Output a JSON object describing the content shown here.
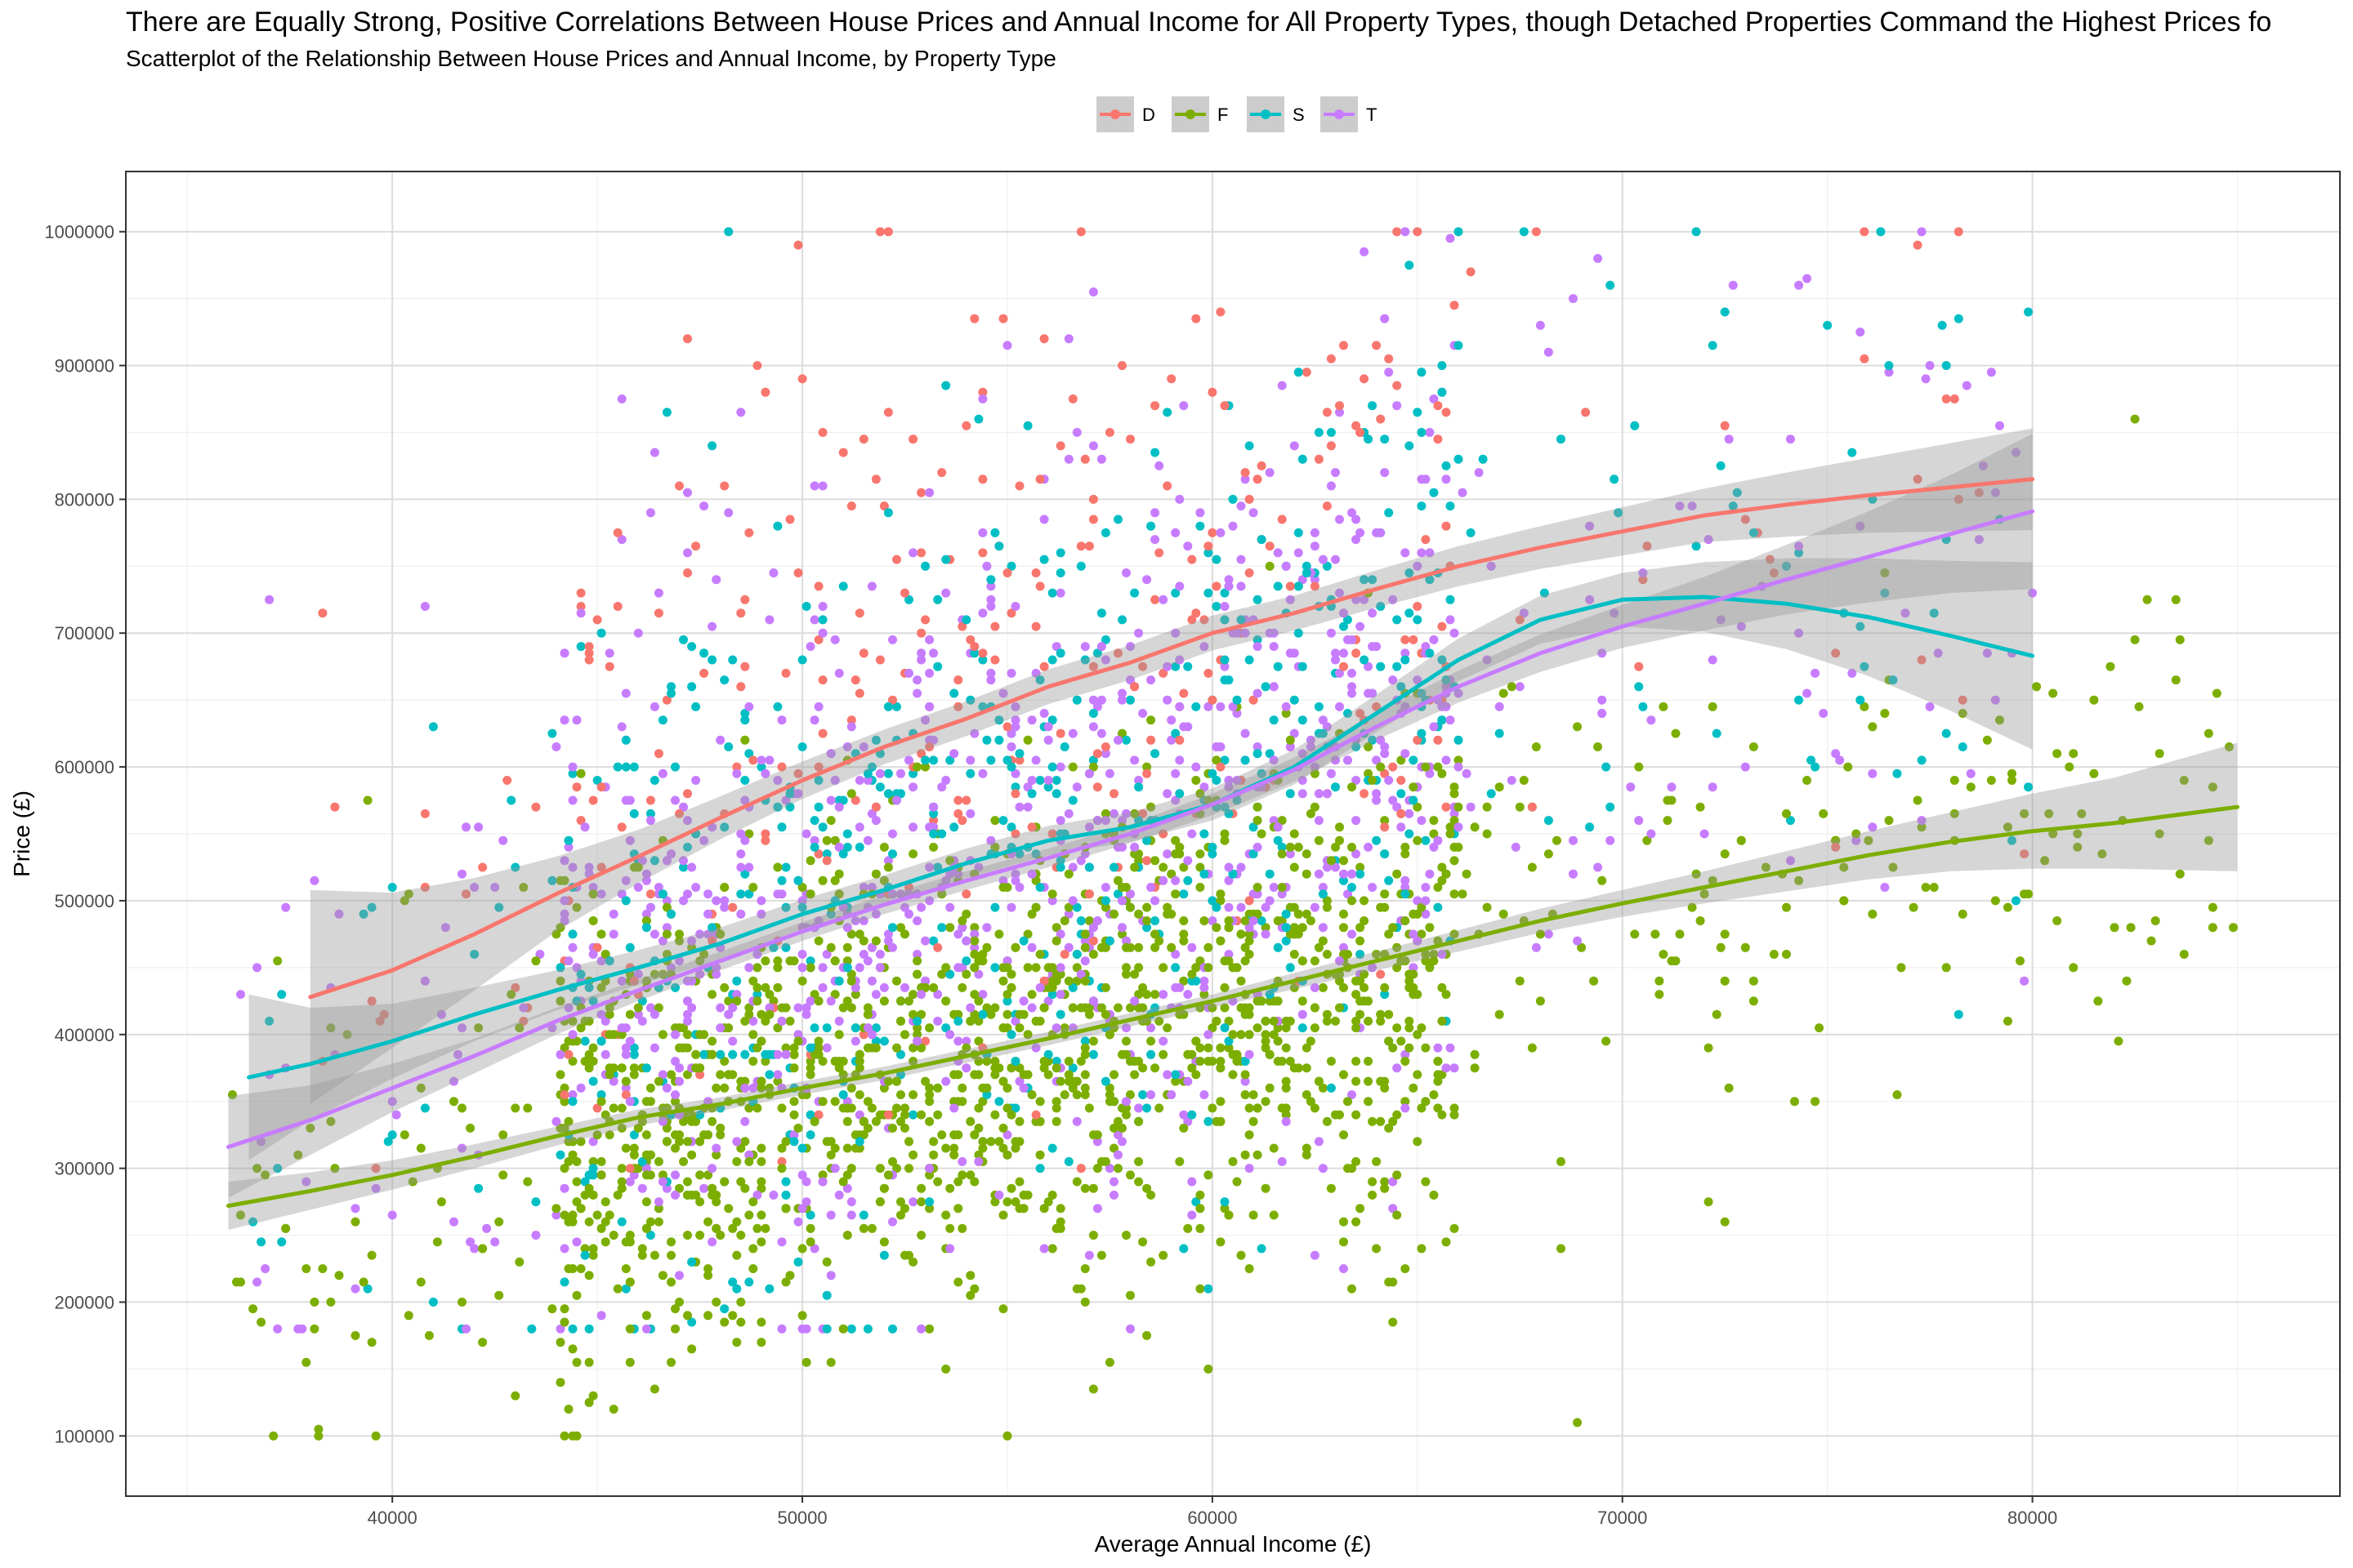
{
  "chart_data": {
    "type": "scatter",
    "title": "There are Equally Strong, Positive Correlations Between House Prices and Annual Income for All Property Types, though Detached Properties Command the Highest Prices fo",
    "subtitle": "Scatterplot of the Relationship Between House Prices and Annual Income, by Property Type",
    "xlabel": "Average Annual Income (£)",
    "ylabel": "Price (£)",
    "xlim": [
      33500,
      87500
    ],
    "ylim": [
      55000,
      1045000
    ],
    "x_ticks": [
      40000,
      50000,
      60000,
      70000,
      80000
    ],
    "y_ticks": [
      100000,
      200000,
      300000,
      400000,
      500000,
      600000,
      700000,
      800000,
      900000,
      1000000
    ],
    "grid": true,
    "legend_position": "top",
    "series": [
      {
        "name": "D",
        "color": "#F8766D",
        "smooth_trend": [
          [
            38000,
            428000
          ],
          [
            40000,
            448000
          ],
          [
            42000,
            475000
          ],
          [
            44000,
            505000
          ],
          [
            46000,
            533000
          ],
          [
            48000,
            562000
          ],
          [
            50000,
            590000
          ],
          [
            52000,
            615000
          ],
          [
            54000,
            636000
          ],
          [
            56000,
            660000
          ],
          [
            58000,
            678000
          ],
          [
            60000,
            700000
          ],
          [
            62000,
            715000
          ],
          [
            64000,
            733000
          ],
          [
            66000,
            750000
          ],
          [
            68000,
            764000
          ],
          [
            70000,
            776000
          ],
          [
            72000,
            788000
          ],
          [
            74000,
            796000
          ],
          [
            76000,
            803000
          ],
          [
            78000,
            809000
          ],
          [
            80000,
            815000
          ]
        ],
        "ci_halfwidth": [
          80000,
          58000,
          42000,
          28000,
          20000,
          16000,
          14000,
          13000,
          13000,
          13000,
          13000,
          13000,
          13000,
          14000,
          15000,
          16000,
          18000,
          20000,
          24000,
          28000,
          33000,
          38000
        ],
        "cloud": {
          "x_range": [
            38000,
            80000
          ],
          "y_range": [
            300000,
            1000000
          ],
          "count": 330
        }
      },
      {
        "name": "F",
        "color": "#7CAE00",
        "smooth_trend": [
          [
            36000,
            272000
          ],
          [
            38000,
            283000
          ],
          [
            40000,
            295000
          ],
          [
            42000,
            309000
          ],
          [
            44000,
            324000
          ],
          [
            46000,
            338000
          ],
          [
            48000,
            348000
          ],
          [
            50000,
            360000
          ],
          [
            52000,
            371000
          ],
          [
            54000,
            384000
          ],
          [
            56000,
            397000
          ],
          [
            58000,
            411000
          ],
          [
            60000,
            425000
          ],
          [
            62000,
            440000
          ],
          [
            64000,
            455000
          ],
          [
            66000,
            470000
          ],
          [
            68000,
            485000
          ],
          [
            70000,
            498000
          ],
          [
            72000,
            510000
          ],
          [
            74000,
            522000
          ],
          [
            76000,
            534000
          ],
          [
            78000,
            544000
          ],
          [
            80000,
            552000
          ],
          [
            82000,
            558000
          ],
          [
            85000,
            570000
          ]
        ],
        "ci_halfwidth": [
          18000,
          14000,
          11000,
          9000,
          7000,
          6000,
          5000,
          5000,
          5000,
          5000,
          5000,
          5000,
          5000,
          6000,
          7000,
          8000,
          9000,
          10000,
          12000,
          15000,
          18000,
          22000,
          28000,
          34000,
          48000
        ],
        "cloud": {
          "x_range": [
            36000,
            85000
          ],
          "y_range": [
            100000,
            1000000
          ],
          "count": 1650
        }
      },
      {
        "name": "S",
        "color": "#00BFC4",
        "smooth_trend": [
          [
            36500,
            368000
          ],
          [
            38000,
            378000
          ],
          [
            40000,
            395000
          ],
          [
            42000,
            415000
          ],
          [
            44000,
            433000
          ],
          [
            46000,
            450000
          ],
          [
            48000,
            468000
          ],
          [
            50000,
            490000
          ],
          [
            52000,
            508000
          ],
          [
            54000,
            528000
          ],
          [
            56000,
            545000
          ],
          [
            58000,
            555000
          ],
          [
            60000,
            572000
          ],
          [
            62000,
            600000
          ],
          [
            64000,
            640000
          ],
          [
            66000,
            680000
          ],
          [
            68000,
            710000
          ],
          [
            70000,
            725000
          ],
          [
            72000,
            727000
          ],
          [
            74000,
            722000
          ],
          [
            76000,
            712000
          ],
          [
            78000,
            698000
          ],
          [
            80000,
            683000
          ]
        ],
        "ci_halfwidth": [
          62000,
          42000,
          28000,
          20000,
          15000,
          13000,
          12000,
          11000,
          11000,
          11000,
          11000,
          11000,
          12000,
          13000,
          14000,
          16000,
          18000,
          20000,
          26000,
          34000,
          44000,
          56000,
          70000
        ],
        "cloud": {
          "x_range": [
            36500,
            80000
          ],
          "y_range": [
            180000,
            1000000
          ],
          "count": 650
        }
      },
      {
        "name": "T",
        "color": "#C77CFF",
        "smooth_trend": [
          [
            36000,
            316000
          ],
          [
            38000,
            336000
          ],
          [
            40000,
            360000
          ],
          [
            42000,
            384000
          ],
          [
            44000,
            410000
          ],
          [
            46000,
            433000
          ],
          [
            48000,
            455000
          ],
          [
            50000,
            477000
          ],
          [
            52000,
            497000
          ],
          [
            54000,
            515000
          ],
          [
            56000,
            532000
          ],
          [
            58000,
            550000
          ],
          [
            60000,
            572000
          ],
          [
            62000,
            598000
          ],
          [
            64000,
            630000
          ],
          [
            66000,
            660000
          ],
          [
            68000,
            685000
          ],
          [
            70000,
            705000
          ],
          [
            72000,
            722000
          ],
          [
            74000,
            740000
          ],
          [
            76000,
            757000
          ],
          [
            78000,
            774000
          ],
          [
            80000,
            791000
          ]
        ],
        "ci_halfwidth": [
          38000,
          26000,
          18000,
          13000,
          10000,
          8000,
          7000,
          7000,
          7000,
          7000,
          7000,
          7000,
          8000,
          9000,
          10000,
          12000,
          14000,
          16000,
          20000,
          26000,
          34000,
          44000,
          58000
        ],
        "cloud": {
          "x_range": [
            36000,
            80000
          ],
          "y_range": [
            180000,
            1000000
          ],
          "count": 1050
        }
      }
    ]
  }
}
